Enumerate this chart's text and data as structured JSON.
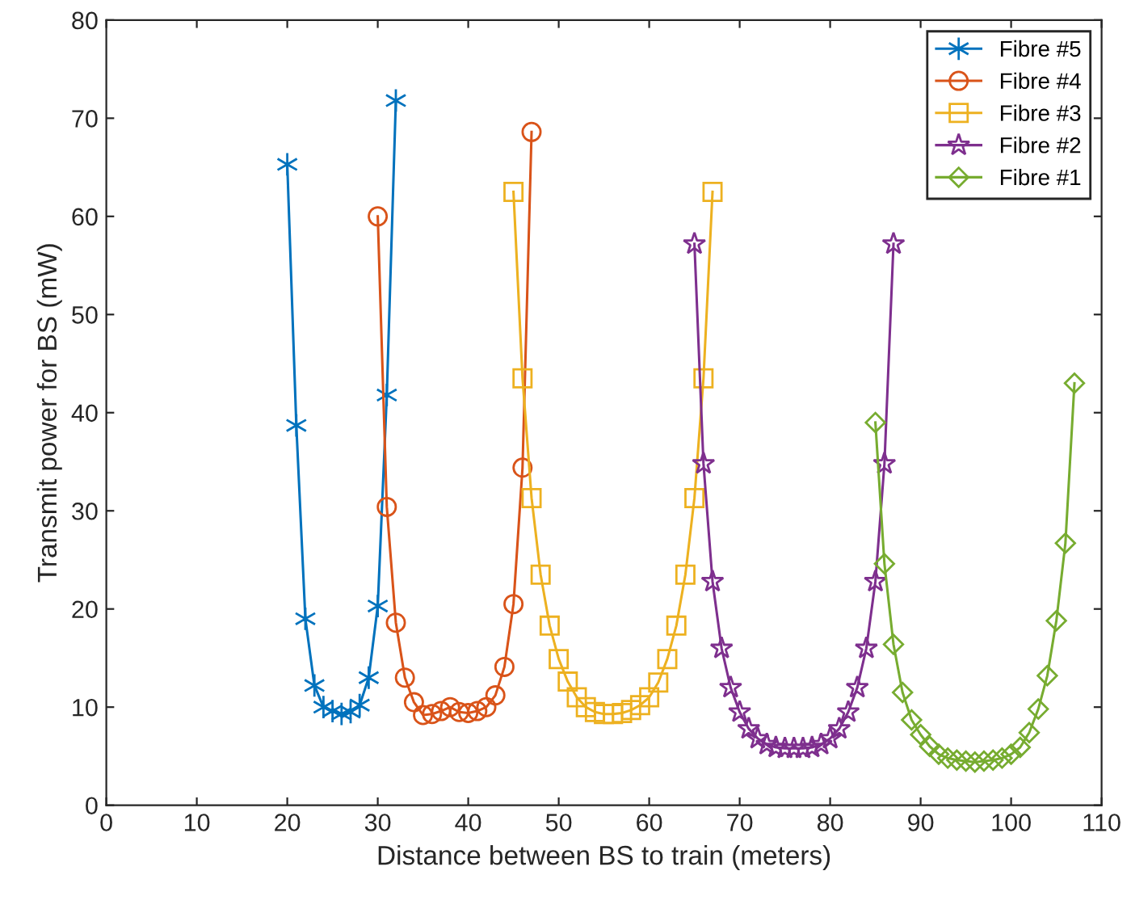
{
  "chart_data": {
    "type": "line",
    "xlabel": "Distance between BS to train (meters)",
    "ylabel": "Transmit power for BS (mW)",
    "xlim": [
      0,
      110
    ],
    "ylim": [
      0,
      80
    ],
    "xticks": [
      0,
      10,
      20,
      30,
      40,
      50,
      60,
      70,
      80,
      90,
      100,
      110
    ],
    "yticks": [
      0,
      10,
      20,
      30,
      40,
      50,
      60,
      70,
      80
    ],
    "grid": false,
    "legend": "top right",
    "line_style": "solid",
    "series": [
      {
        "name": "Fibre #5",
        "color": "#0072bd",
        "marker": "cross",
        "x": [
          20,
          21,
          22,
          23,
          24,
          25,
          26,
          27,
          28,
          29,
          30,
          31,
          32
        ],
        "values": [
          65.3,
          38.7,
          19,
          12.2,
          10,
          9.6,
          9.3,
          9.5,
          10.2,
          13,
          20.3,
          41.8,
          71.8
        ]
      },
      {
        "name": "Fibre #4",
        "color": "#d95319",
        "marker": "circle",
        "x": [
          30,
          31,
          32,
          33,
          34,
          35,
          36,
          37,
          38,
          39,
          40,
          41,
          42,
          43,
          44,
          45,
          46,
          47
        ],
        "values": [
          60,
          30.4,
          18.6,
          13,
          10.5,
          9.2,
          9.3,
          9.6,
          10,
          9.5,
          9.4,
          9.6,
          10,
          11.2,
          14.1,
          20.5,
          34.4,
          68.6
        ]
      },
      {
        "name": "Fibre #3",
        "color": "#edb120",
        "marker": "square",
        "x": [
          45,
          46,
          47,
          48,
          49,
          50,
          51,
          52,
          53,
          54,
          55,
          56,
          57,
          58,
          59,
          60,
          61,
          62,
          63,
          64,
          65,
          66,
          67
        ],
        "values": [
          62.5,
          43.5,
          31.3,
          23.5,
          18.3,
          14.9,
          12.6,
          11,
          10,
          9.5,
          9.3,
          9.3,
          9.4,
          9.7,
          10.2,
          11,
          12.5,
          14.9,
          18.3,
          23.5,
          31.3,
          43.5,
          62.5
        ]
      },
      {
        "name": "Fibre #2",
        "color": "#7e2f8e",
        "marker": "star",
        "x": [
          65,
          66,
          67,
          68,
          69,
          70,
          71,
          72,
          73,
          74,
          75,
          76,
          77,
          78,
          79,
          80,
          81,
          82,
          83,
          84,
          85,
          86,
          87
        ],
        "values": [
          57.2,
          34.8,
          22.8,
          16,
          12,
          9.5,
          7.8,
          6.8,
          6.2,
          5.9,
          5.8,
          5.8,
          5.8,
          5.9,
          6.2,
          6.8,
          7.8,
          9.5,
          12,
          16,
          22.8,
          34.8,
          57.2
        ]
      },
      {
        "name": "Fibre #1",
        "color": "#77ac30",
        "marker": "diamond",
        "x": [
          85,
          86,
          87,
          88,
          89,
          90,
          91,
          92,
          93,
          94,
          95,
          96,
          97,
          98,
          99,
          100,
          101,
          102,
          103,
          104,
          105,
          106,
          107
        ],
        "values": [
          39,
          24.6,
          16.4,
          11.5,
          8.7,
          7.2,
          6,
          5.2,
          4.8,
          4.6,
          4.5,
          4.4,
          4.5,
          4.6,
          4.8,
          5.2,
          5.9,
          7.4,
          9.8,
          13.2,
          18.8,
          26.7,
          43
        ]
      }
    ]
  }
}
